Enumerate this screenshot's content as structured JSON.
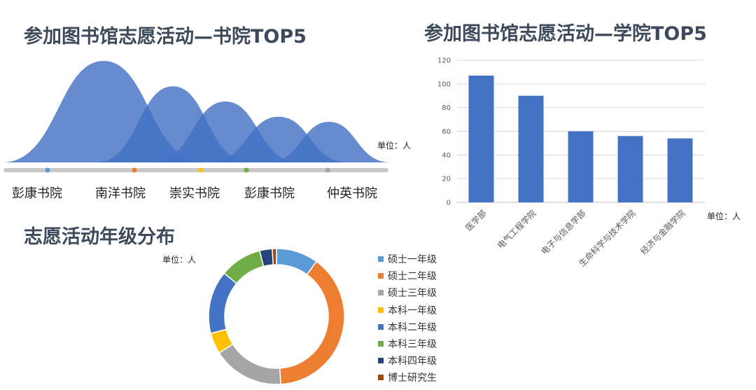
{
  "panels": {
    "mountain_title": "参加图书馆志愿活动—书院TOP5",
    "bar_title": "参加图书馆志愿活动—学院TOP5",
    "donut_title": "志愿活动年级分布",
    "mountain_unit": "单位：人",
    "bar_unit": "单位：人",
    "donut_unit": "单位：人"
  },
  "colors": {
    "mountain_fill": "#4472c4",
    "bar_fill": "#4472c4",
    "track": "#c8c8c8"
  },
  "chart_data": [
    {
      "type": "area",
      "title": "参加图书馆志愿活动—书院TOP5",
      "categories": [
        "彭康书院",
        "南洋书院",
        "崇实书院",
        "彭康书院",
        "仲英书院"
      ],
      "values": [
        100,
        75,
        60,
        45,
        40
      ],
      "marker_colors": [
        "#5b9bd5",
        "#ed7d31",
        "#ffc000",
        "#70ad47",
        "#a5a5a5"
      ],
      "ylim": [
        0,
        100
      ],
      "grid": false,
      "legend": "none"
    },
    {
      "type": "bar",
      "title": "参加图书馆志愿活动—学院TOP5",
      "categories": [
        "医学部",
        "电气工程学院",
        "电子与信息学部",
        "生命科学与技术学院",
        "经济与金融学院"
      ],
      "values": [
        107,
        90,
        60,
        56,
        54
      ],
      "ylim": [
        0,
        120
      ],
      "yticks": [
        0,
        20,
        40,
        60,
        80,
        100,
        120
      ],
      "grid": true,
      "legend": "none"
    },
    {
      "type": "pie",
      "title": "志愿活动年级分布",
      "labels": [
        "硕士一年级",
        "硕士二年级",
        "硕士三年级",
        "本科一年级",
        "本科二年级",
        "本科三年级",
        "本科四年级",
        "博士研究生"
      ],
      "values": [
        10,
        39,
        17,
        5,
        15,
        10,
        3,
        1
      ],
      "colors": [
        "#5b9bd5",
        "#ed7d31",
        "#a5a5a5",
        "#ffc000",
        "#4472c4",
        "#70ad47",
        "#264478",
        "#9e480e"
      ],
      "legend": "right"
    }
  ]
}
